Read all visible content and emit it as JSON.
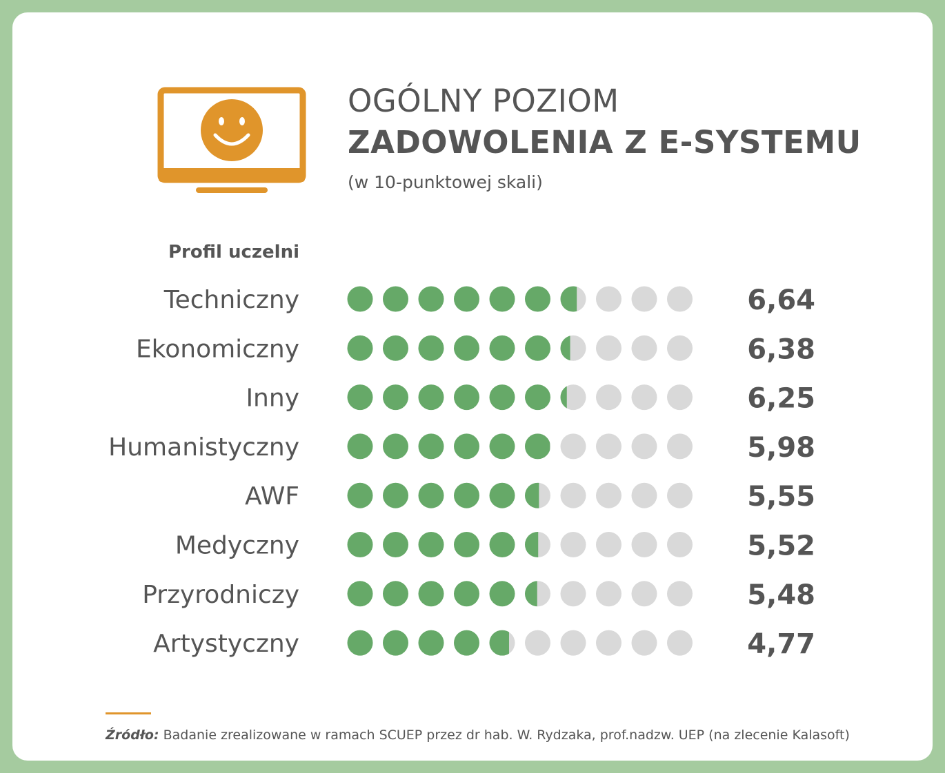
{
  "title": {
    "line1": "OGÓLNY POZIOM",
    "line2": "ZADOWOLENIA Z E-SYSTEMU",
    "subtitle": "(w 10-punktowej skali)"
  },
  "icon": "monitor-smiley-icon",
  "group_header": "Profil uczelni",
  "source": {
    "label": "Źródło:",
    "text": " Badanie zrealizowane w ramach SCUEP przez dr hab. W. Rydzaka, prof.nadzw. UEP (na zlecenie Kalasoft)"
  },
  "colors": {
    "background": "#a5cb9f",
    "filled": "#66a968",
    "empty": "#d9d9d9",
    "accent": "#e0952b",
    "text": "#555555"
  },
  "chart_data": {
    "type": "bar",
    "scale_max": 10,
    "categories": [
      "Techniczny",
      "Ekonomiczny",
      "Inny",
      "Humanistyczny",
      "AWF",
      "Medyczny",
      "Przyrodniczy",
      "Artystyczny"
    ],
    "values": [
      6.64,
      6.38,
      6.25,
      5.98,
      5.55,
      5.52,
      5.48,
      4.77
    ],
    "value_labels": [
      "6,64",
      "6,38",
      "6,25",
      "5,98",
      "5,55",
      "5,52",
      "5,48",
      "4,77"
    ]
  }
}
